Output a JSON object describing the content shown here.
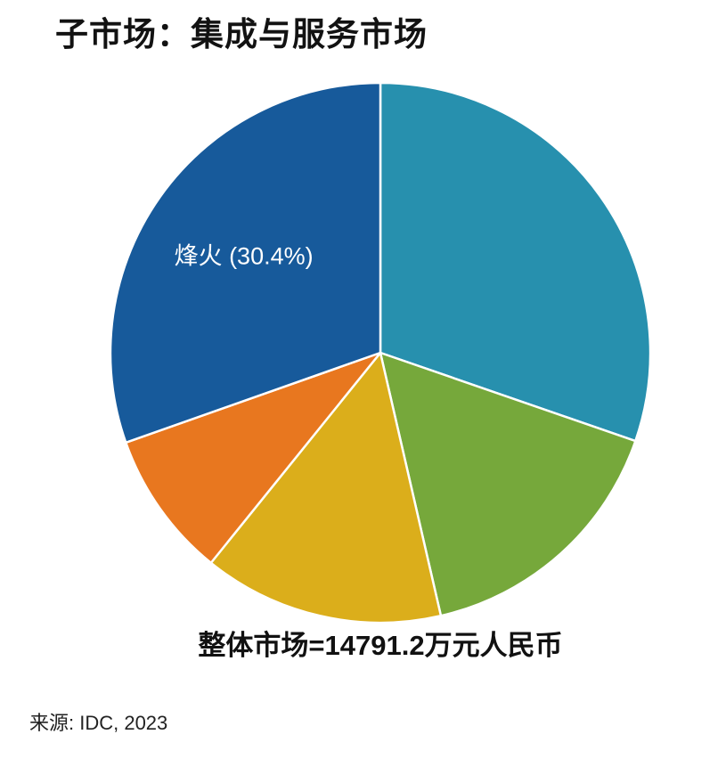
{
  "page": {
    "title": "子市场：集成与服务市场",
    "caption": "整体市场=14791.2万元人民币",
    "source": "来源: IDC, 2023"
  },
  "chart_data": {
    "type": "pie",
    "title": "子市场：集成与服务市场",
    "total_label": "整体市场=14791.2万元人民币",
    "total_value": 14791.2,
    "total_unit": "万元人民币",
    "source": "IDC, 2023",
    "direction": "clockwise",
    "start_angle_deg": 0,
    "legend": "none",
    "slices": [
      {
        "label": "",
        "percent": 30.3,
        "color": "#2790AE"
      },
      {
        "label": "",
        "percent": 16.1,
        "color": "#76A83B"
      },
      {
        "label": "",
        "percent": 14.4,
        "color": "#DBAE1B"
      },
      {
        "label": "",
        "percent": 8.8,
        "color": "#E8771F"
      },
      {
        "label": "烽火 (30.4%)",
        "percent": 30.4,
        "color": "#175A9B",
        "label_color": "#ffffff"
      }
    ]
  }
}
